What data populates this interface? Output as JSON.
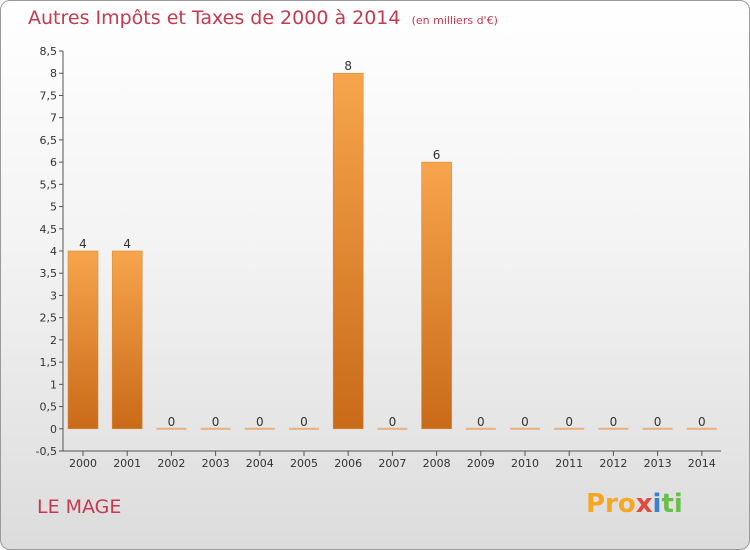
{
  "header": {
    "title": "Autres Impôts et Taxes de 2000 à 2014",
    "unit": "(en milliers d'€)"
  },
  "footer": {
    "place": "LE MAGE",
    "logo_parts": [
      "Pro",
      "x",
      "i",
      "ti"
    ]
  },
  "colors": {
    "title": "#c43a4f",
    "bar_top": "#f7a54d",
    "bar_bottom": "#c96a18",
    "zero_bar": "#e8b07a"
  },
  "chart_data": {
    "type": "bar",
    "title": "Autres Impôts et Taxes de 2000 à 2014",
    "subtitle": "(en milliers d'€)",
    "xlabel": "",
    "ylabel": "",
    "categories": [
      "2000",
      "2001",
      "2002",
      "2003",
      "2004",
      "2005",
      "2006",
      "2007",
      "2008",
      "2009",
      "2010",
      "2011",
      "2012",
      "2013",
      "2014"
    ],
    "values": [
      4,
      4,
      0,
      0,
      0,
      0,
      8,
      0,
      6,
      0,
      0,
      0,
      0,
      0,
      0
    ],
    "ylim": [
      -0.5,
      8.5
    ],
    "yticks": [
      -0.5,
      0,
      0.5,
      1,
      1.5,
      2,
      2.5,
      3,
      3.5,
      4,
      4.5,
      5,
      5.5,
      6,
      6.5,
      7,
      7.5,
      8,
      8.5
    ],
    "ytick_labels": [
      "-0,5",
      "0",
      "0,5",
      "1",
      "1,5",
      "2",
      "2,5",
      "3",
      "3,5",
      "4",
      "4,5",
      "5",
      "5,5",
      "6",
      "6,5",
      "7",
      "7,5",
      "8",
      "8,5"
    ],
    "grid": false,
    "legend": "none"
  }
}
